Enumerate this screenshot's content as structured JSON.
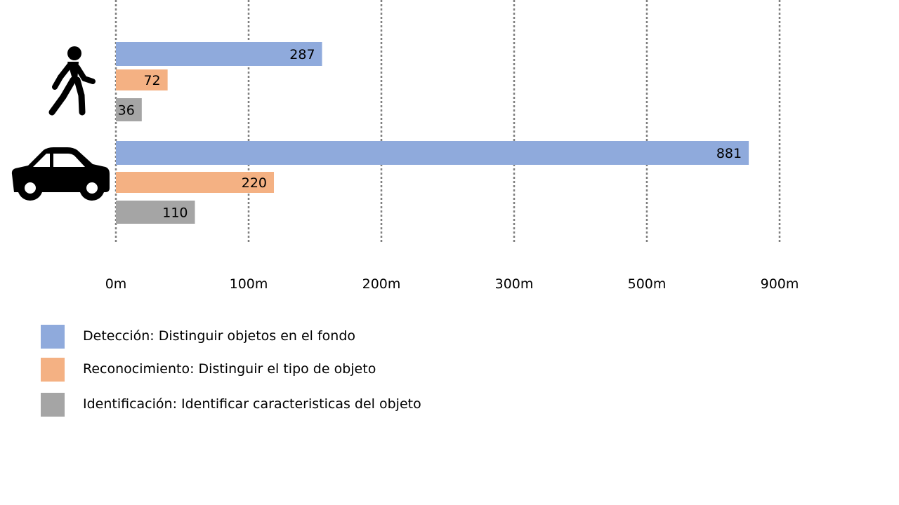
{
  "chart_data": {
    "type": "bar",
    "orientation": "horizontal",
    "categories": [
      "person-icon",
      "car-icon"
    ],
    "series": [
      {
        "name": "Detección: Distinguir objetos en el fondo",
        "color": "#8faadc",
        "values": [
          287,
          881
        ]
      },
      {
        "name": "Reconocimiento: Distinguir el tipo de objeto",
        "color": "#f4b183",
        "values": [
          72,
          220
        ]
      },
      {
        "name": "Identificación: Identificar caracteristicas del objeto",
        "color": "#a5a5a5",
        "values": [
          36,
          110
        ]
      }
    ],
    "x_ticks": [
      "0m",
      "100m",
      "200m",
      "300m",
      "500m",
      "900m"
    ],
    "grid": "vertical-dotted",
    "legend_position": "bottom-left"
  }
}
